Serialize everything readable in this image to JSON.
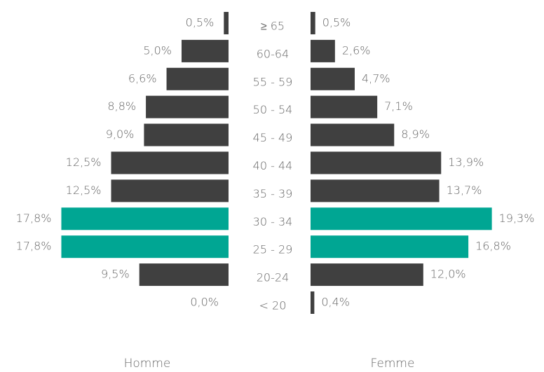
{
  "chart_data": {
    "type": "pyramid",
    "categories": [
      "≥ 65",
      "60-64",
      "55 - 59",
      "50 - 54",
      "45 - 49",
      "40 - 44",
      "35 - 39",
      "30 - 34",
      "25 - 29",
      "20-24",
      "< 20"
    ],
    "series": [
      {
        "name": "Homme",
        "values": [
          0.5,
          5.0,
          6.6,
          8.8,
          9.0,
          12.5,
          12.5,
          17.8,
          17.8,
          9.5,
          0.0
        ],
        "value_labels": [
          "0,5%",
          "5,0%",
          "6,6%",
          "8,8%",
          "9,0%",
          "12,5%",
          "12,5%",
          "17,8%",
          "17,8%",
          "9,5%",
          "0,0%"
        ],
        "colors": [
          "#404040",
          "#404040",
          "#404040",
          "#404040",
          "#404040",
          "#404040",
          "#404040",
          "#00a693",
          "#00a693",
          "#404040",
          "#404040"
        ]
      },
      {
        "name": "Femme",
        "values": [
          0.5,
          2.6,
          4.7,
          7.1,
          8.9,
          13.9,
          13.7,
          19.3,
          16.8,
          12.0,
          0.4
        ],
        "value_labels": [
          "0,5%",
          "2,6%",
          "4,7%",
          "7,1%",
          "8,9%",
          "13,9%",
          "13,7%",
          "19,3%",
          "16,8%",
          "12,0%",
          "0,4%"
        ],
        "colors": [
          "#404040",
          "#404040",
          "#404040",
          "#404040",
          "#404040",
          "#404040",
          "#404040",
          "#00a693",
          "#00a693",
          "#404040",
          "#404040"
        ]
      }
    ]
  }
}
